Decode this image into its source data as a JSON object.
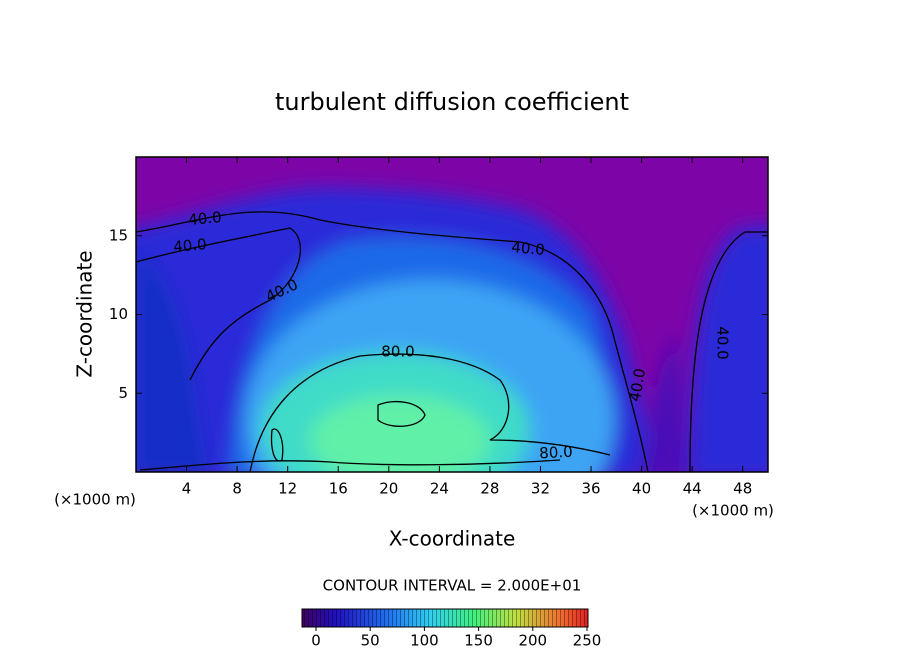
{
  "chart_data": {
    "type": "contour",
    "title": "turbulent diffusion coefficient",
    "xlabel": "X-coordinate",
    "ylabel": "Z-coordinate",
    "x_unit_labels": [
      "(×1000 m)",
      "(×1000 m)"
    ],
    "xlim": [
      0,
      50
    ],
    "xticks": [
      4,
      8,
      12,
      16,
      20,
      24,
      28,
      32,
      36,
      40,
      44,
      48
    ],
    "ylim": [
      0,
      20
    ],
    "yticks": [
      5,
      10,
      15
    ],
    "contour_interval_label": "CONTOUR INTERVAL = 2.000E+01",
    "contour_labels": [
      {
        "value": 40,
        "label": "40.0"
      },
      {
        "value": 40,
        "label": "40.0"
      },
      {
        "value": 40,
        "label": "40.0"
      },
      {
        "value": 40,
        "label": "40.0"
      },
      {
        "value": 80,
        "label": "80.0"
      },
      {
        "value": 80,
        "label": "80.0"
      },
      {
        "value": 40,
        "label": "40.0"
      },
      {
        "value": 40,
        "label": "40.0"
      }
    ],
    "colorbar": {
      "lim": [
        0,
        250
      ],
      "ticks": [
        0,
        50,
        100,
        150,
        200,
        250
      ]
    }
  }
}
